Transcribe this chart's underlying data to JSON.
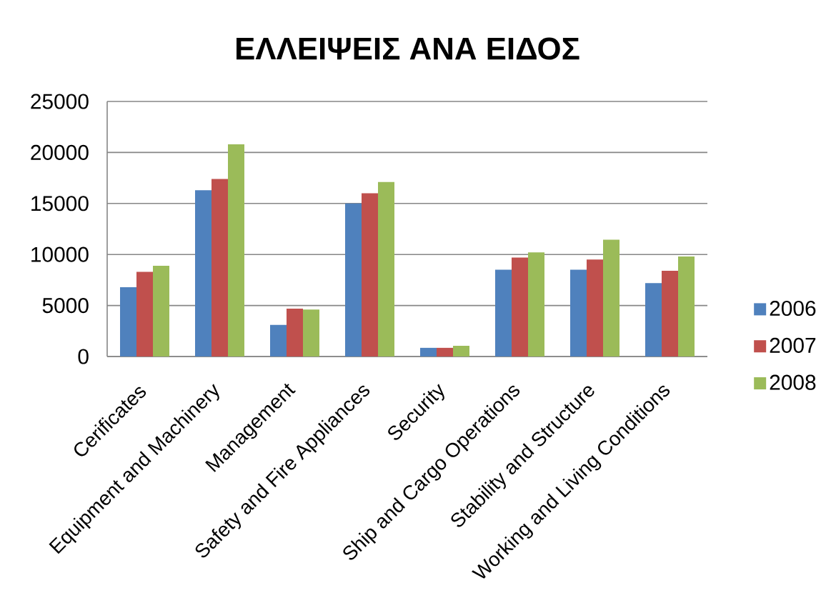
{
  "chart_data": {
    "type": "bar",
    "title": "ΕΛΛΕΙΨΕΙΣ ΑΝΑ ΕΙΔΟΣ",
    "categories": [
      "Cerificates",
      "Equipment and Machinery",
      "Management",
      "Safety and Fire Appliances",
      "Security",
      "Ship and Cargo Operations",
      "Stability and Structure",
      "Working and Living Conditions"
    ],
    "series": [
      {
        "name": "2006",
        "color": "#4f81bd",
        "values": [
          6800,
          16300,
          3100,
          15000,
          850,
          8500,
          8500,
          7200
        ]
      },
      {
        "name": "2007",
        "color": "#c0504d",
        "values": [
          8300,
          17400,
          4700,
          16000,
          850,
          9700,
          9500,
          8400
        ]
      },
      {
        "name": "2008",
        "color": "#9bbb59",
        "values": [
          8900,
          20800,
          4600,
          17100,
          1050,
          10200,
          11450,
          9800
        ]
      }
    ],
    "ylim": [
      0,
      25000
    ],
    "yticks": [
      0,
      5000,
      10000,
      15000,
      20000,
      25000
    ],
    "grid": "y",
    "legend": "right"
  }
}
